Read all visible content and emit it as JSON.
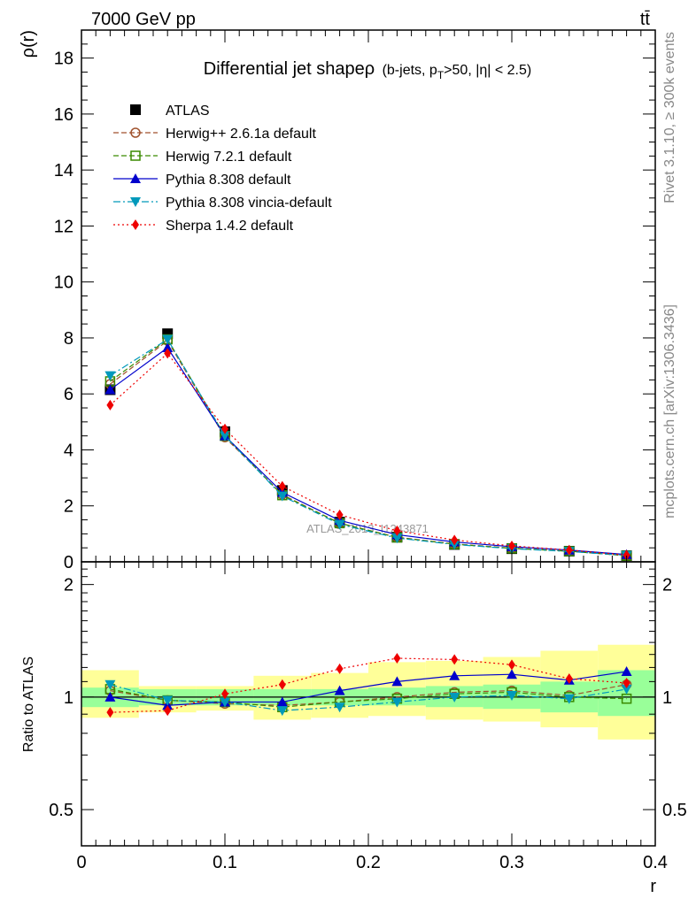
{
  "header": {
    "energy": "7000 GeV pp",
    "process": "tt̄"
  },
  "side_labels": {
    "rivet": "Rivet 3.1.10, ≥ 300k events",
    "mcplots": "mcplots.cern.ch [arXiv:1306.3436]"
  },
  "watermark": "ATLAS_2013_I1243871",
  "colors": {
    "band_inner": "#99ff99",
    "band_outer": "#ffff99"
  },
  "chart_data": [
    {
      "type": "line",
      "title": "Differential jet shapeρ",
      "title_suffix": "(b-jets, p",
      "title_sub": "T",
      "title_tail": ">50, |η| < 2.5)",
      "xlabel": "r",
      "ylabel": "ρ(r)",
      "xlim": [
        0,
        0.4
      ],
      "ylim": [
        0,
        19
      ],
      "yticks": [
        "0",
        "2",
        "4",
        "6",
        "8",
        "10",
        "12",
        "14",
        "16",
        "18"
      ],
      "xticks": [
        "0",
        "0.1",
        "0.2",
        "0.3",
        "0.4"
      ],
      "legend_position": "top-left",
      "x": [
        0.02,
        0.06,
        0.1,
        0.14,
        0.18,
        0.22,
        0.26,
        0.3,
        0.34,
        0.38
      ],
      "series": [
        {
          "name": "ATLAS",
          "color": "#000000",
          "marker": "square-filled",
          "line": "none",
          "values": [
            6.15,
            8.15,
            4.65,
            2.55,
            1.42,
            0.88,
            0.62,
            0.47,
            0.38,
            0.22
          ]
        },
        {
          "name": "Herwig++ 2.6.1a default",
          "color": "#a0522d",
          "marker": "circle-open",
          "line": "dashed",
          "values": [
            6.35,
            7.9,
            4.45,
            2.4,
            1.38,
            0.88,
            0.64,
            0.49,
            0.38,
            0.22
          ]
        },
        {
          "name": "Herwig 7.2.1 default",
          "color": "#3a8a00",
          "marker": "square-open",
          "line": "dashed",
          "values": [
            6.45,
            7.95,
            4.5,
            2.38,
            1.38,
            0.87,
            0.63,
            0.48,
            0.38,
            0.22
          ]
        },
        {
          "name": "Pythia 8.308 default",
          "color": "#0000cc",
          "marker": "triangle-up",
          "line": "solid",
          "values": [
            6.15,
            7.65,
            4.5,
            2.48,
            1.48,
            0.97,
            0.71,
            0.54,
            0.42,
            0.26
          ]
        },
        {
          "name": "Pythia 8.308 vincia-default",
          "color": "#0099bb",
          "marker": "triangle-down",
          "line": "dashdot",
          "values": [
            6.65,
            7.95,
            4.5,
            2.35,
            1.34,
            0.85,
            0.62,
            0.47,
            0.37,
            0.23
          ]
        },
        {
          "name": "Sherpa 1.4.2 default",
          "color": "#ee0000",
          "marker": "diamond",
          "line": "dotted",
          "values": [
            5.6,
            7.45,
            4.75,
            2.7,
            1.68,
            1.11,
            0.78,
            0.57,
            0.42,
            0.24
          ]
        }
      ]
    },
    {
      "type": "line",
      "ylabel": "Ratio to ATLAS",
      "xlabel": "r",
      "xlim": [
        0,
        0.4
      ],
      "ylim": [
        0.4,
        2.3
      ],
      "ylog": true,
      "yticks": [
        "0.5",
        "1",
        "2"
      ],
      "xticks": [
        "0",
        "0.1",
        "0.2",
        "0.3",
        "0.4"
      ],
      "bin_edges": [
        0,
        0.04,
        0.08,
        0.12,
        0.16,
        0.2,
        0.24,
        0.28,
        0.32,
        0.36,
        0.4
      ],
      "band_inner_low": [
        0.94,
        0.95,
        0.95,
        0.95,
        0.95,
        0.95,
        0.94,
        0.93,
        0.91,
        0.89
      ],
      "band_inner_high": [
        1.06,
        1.05,
        1.05,
        1.05,
        1.05,
        1.06,
        1.07,
        1.08,
        1.1,
        1.18
      ],
      "band_outer_low": [
        0.88,
        0.91,
        0.92,
        0.87,
        0.88,
        0.89,
        0.87,
        0.86,
        0.83,
        0.77
      ],
      "band_outer_high": [
        1.18,
        1.07,
        1.07,
        1.14,
        1.16,
        1.24,
        1.25,
        1.28,
        1.33,
        1.38
      ],
      "x": [
        0.02,
        0.06,
        0.1,
        0.14,
        0.18,
        0.22,
        0.26,
        0.3,
        0.34,
        0.38
      ],
      "series": [
        {
          "name": "Herwig++ 2.6.1a default",
          "values": [
            1.04,
            0.98,
            0.96,
            0.95,
            0.97,
            1.0,
            1.03,
            1.04,
            1.01,
            1.08
          ]
        },
        {
          "name": "Herwig 7.2.1 default",
          "values": [
            1.05,
            0.98,
            0.97,
            0.94,
            0.97,
            0.99,
            1.02,
            1.03,
            1.0,
            0.99
          ]
        },
        {
          "name": "Pythia 8.308 default",
          "values": [
            1.0,
            0.95,
            0.97,
            0.97,
            1.04,
            1.1,
            1.14,
            1.15,
            1.11,
            1.17
          ]
        },
        {
          "name": "Pythia 8.308 vincia-default",
          "values": [
            1.08,
            0.98,
            0.97,
            0.92,
            0.94,
            0.97,
            1.0,
            1.01,
            0.99,
            1.05
          ]
        },
        {
          "name": "Sherpa 1.4.2 default",
          "values": [
            0.91,
            0.92,
            1.02,
            1.08,
            1.19,
            1.27,
            1.26,
            1.22,
            1.12,
            1.09
          ]
        }
      ]
    }
  ]
}
